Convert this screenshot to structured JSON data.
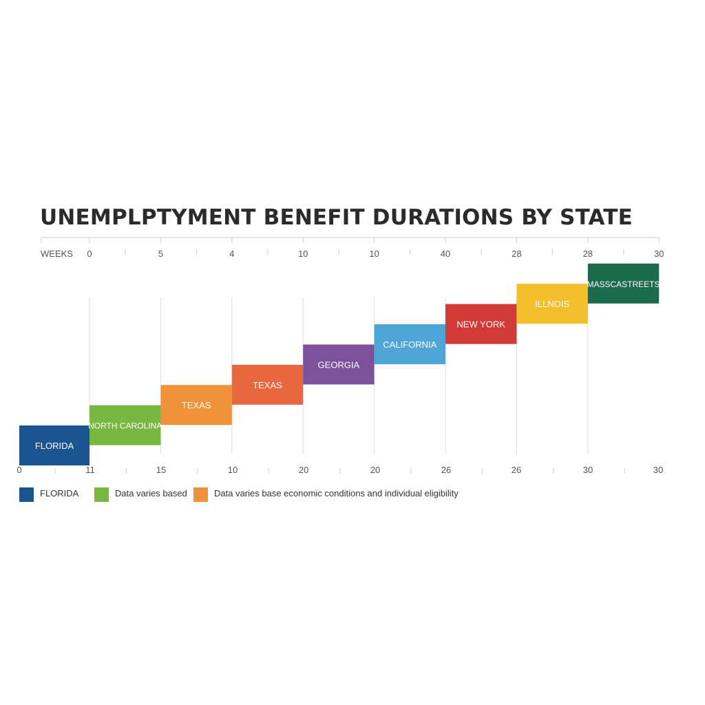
{
  "chart_data": {
    "type": "bar",
    "title": "UNEMPLPTYMENT BENEFIT DURATIONS BY STATE",
    "top_axis": {
      "label": "WEEKS",
      "tick_labels": [
        "0",
        "5",
        "4",
        "10",
        "10",
        "40",
        "28",
        "28",
        "30"
      ]
    },
    "bottom_axis": {
      "tick_labels": [
        "0",
        "11",
        "15",
        "10",
        "20",
        "20",
        "26",
        "26",
        "30",
        "30"
      ]
    },
    "bars": [
      {
        "label": "FLORIDA",
        "color": "#1a5591",
        "level": 1
      },
      {
        "label": "NORTH CAROLINA",
        "color": "#78b842",
        "level": 2
      },
      {
        "label": "TEXAS",
        "color": "#f0923a",
        "level": 3
      },
      {
        "label": "TEXAS",
        "color": "#e8673e",
        "level": 4
      },
      {
        "label": "GEORGIA",
        "color": "#7e519d",
        "level": 5
      },
      {
        "label": "CALIFORNIA",
        "color": "#4ea5d6",
        "level": 6
      },
      {
        "label": "NEW YORK",
        "color": "#d23a38",
        "level": 7
      },
      {
        "label": "ILLNOIS",
        "color": "#f3bf2d",
        "level": 8
      },
      {
        "label": "MASSCASTREETS",
        "color": "#1d6b4f",
        "level": 9
      }
    ],
    "legend": [
      {
        "label": "FLORIDA",
        "color": "#1a5591"
      },
      {
        "label": "Data varies based",
        "color": "#78b842"
      },
      {
        "label": "Data varies base economic conditions and individual eligibility",
        "color": "#f0923a"
      }
    ],
    "grid": true
  }
}
